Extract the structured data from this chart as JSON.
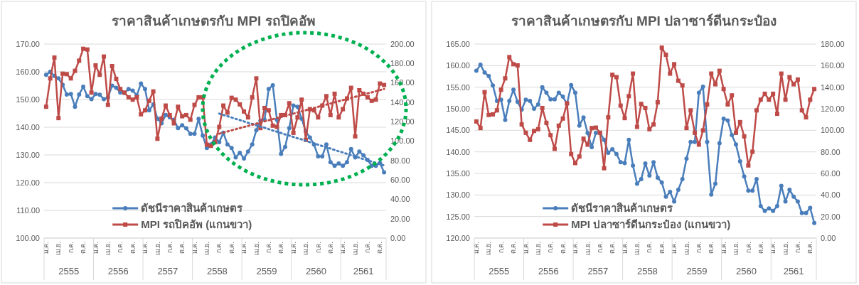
{
  "chart_data": [
    {
      "type": "line",
      "title": "ราคาสินค้าเกษตรกับ MPI รถปิคอัพ",
      "categories": [
        "ม.ค.",
        null,
        null,
        "เม.ย.",
        null,
        null,
        "ก.ค.",
        null,
        null,
        "ต.ค.",
        null,
        null,
        "ม.ค.",
        null,
        null,
        "เม.ย.",
        null,
        null,
        "ก.ค.",
        null,
        null,
        "ต.ค.",
        null,
        null,
        "ม.ค.",
        null,
        null,
        "เม.ย.",
        null,
        null,
        "ก.ค.",
        null,
        null,
        "ต.ค.",
        null,
        null,
        "ม.ค.",
        null,
        null,
        "เม.ย.",
        null,
        null,
        "ก.ค.",
        null,
        null,
        "ต.ค.",
        null,
        null,
        "ม.ค.",
        null,
        null,
        "เม.ย.",
        null,
        null,
        "ก.ค.",
        null,
        null,
        "ต.ค.",
        null,
        null,
        "ม.ค.",
        null,
        null,
        "เม.ย.",
        null,
        null,
        "ก.ค.",
        null,
        null,
        "ต.ค.",
        null,
        null,
        "ม.ค.",
        null,
        null,
        "เม.ย.",
        null,
        null,
        "ก.ค.",
        null,
        null,
        "ต.ค.",
        null
      ],
      "annotations": [
        "2555",
        "2556",
        "2557",
        "2558",
        "2559",
        "2560",
        "2561"
      ],
      "series": [
        {
          "name": "ดัชนีราคาสินค้าเกษตร",
          "color": "#4a7ebb",
          "marker": "circle",
          "values": [
            158.9,
            160,
            158.5,
            157.6,
            155.3,
            151.8,
            152,
            147.4,
            151.8,
            154.6,
            151.2,
            150.1,
            152,
            151.7,
            150.1,
            150.8,
            155,
            154.2,
            152.5,
            152.3,
            153.8,
            153.2,
            151.5,
            155.8,
            153.8,
            146.1,
            148.2,
            143.1,
            141.4,
            144.4,
            143.6,
            142.7,
            139.7,
            140.7,
            139.6,
            137.6,
            137.6,
            143,
            137,
            132.5,
            133.8,
            136.3,
            134.6,
            138,
            133.8,
            132.5,
            129.1,
            130.8,
            128.7,
            131.2,
            133.8,
            138.9,
            142.3,
            142.7,
            153.8,
            155.1,
            142.7,
            130.4,
            132.9,
            139.7,
            147.8,
            147.4,
            143.1,
            138.5,
            136.3,
            133.8,
            129.5,
            129.5,
            133.8,
            127.4,
            126.1,
            126.9,
            126.1,
            127.4,
            132.1,
            129.1,
            131.2,
            129.9,
            128.2,
            126.1,
            126.1,
            127.1,
            123.7
          ]
        },
        {
          "name": "MPI รถปิคอัพ (แกนขวา)",
          "color": "#be4b48",
          "marker": "square",
          "axis": "y2",
          "values": [
            135.4,
            164.6,
            186.1,
            123.7,
            169.5,
            169,
            164.6,
            172.4,
            182.9,
            195.1,
            194.4,
            150,
            178,
            168.3,
            187.1,
            137.3,
            177.3,
            164.1,
            153.7,
            150,
            145.1,
            142.7,
            145.1,
            127.6,
            131.7,
            141.5,
            151.2,
            102.4,
            123.2,
            136.6,
            126.8,
            118.3,
            135.4,
            125.6,
            126.8,
            122,
            137.3,
            145.1,
            145.1,
            96.3,
            95.1,
            98.8,
            114.6,
            136.6,
            129.3,
            144.6,
            142.7,
            137.8,
            130.5,
            124.4,
            145.1,
            164.6,
            113.4,
            134.1,
            131.7,
            115.9,
            114.6,
            126.8,
            126.8,
            139,
            108.5,
            124.4,
            142.7,
            101.2,
            132.9,
            131.7,
            124.4,
            136.6,
            146.3,
            126.8,
            148.8,
            124.4,
            132.9,
            143.9,
            154.9,
            104.9,
            152.4,
            148.8,
            145.1,
            141.5,
            142.7,
            159.3,
            157.8
          ]
        },
        {
          "color": "#4a7ebb",
          "marker": "none",
          "line_style": "dotted",
          "values": [
            null,
            null,
            null,
            null,
            null,
            null,
            null,
            null,
            null,
            null,
            null,
            null,
            null,
            null,
            null,
            null,
            null,
            null,
            null,
            null,
            null,
            null,
            null,
            null,
            null,
            null,
            null,
            null,
            null,
            null,
            null,
            null,
            null,
            null,
            null,
            null,
            null,
            null,
            null,
            null,
            null,
            null,
            144.9,
            144.4,
            144,
            143.5,
            143,
            142.6,
            142.1,
            141.6,
            141.2,
            140.7,
            140.2,
            139.8,
            139.3,
            138.8,
            138.4,
            137.9,
            137.4,
            137,
            136.5,
            136,
            135.6,
            135.1,
            134.6,
            134.2,
            133.7,
            133.2,
            132.8,
            132.3,
            131.8,
            131.3,
            130.9,
            130.4,
            129.9,
            129.5,
            129,
            128.5,
            128.1,
            127.6,
            127.1,
            126.7,
            126.2
          ]
        },
        {
          "color": "#be4b48",
          "marker": "none",
          "line_style": "dotted",
          "axis": "y2",
          "values": [
            null,
            null,
            null,
            null,
            null,
            null,
            null,
            null,
            null,
            null,
            null,
            null,
            null,
            null,
            null,
            null,
            null,
            null,
            null,
            null,
            null,
            null,
            null,
            null,
            null,
            null,
            null,
            null,
            null,
            null,
            null,
            null,
            null,
            null,
            null,
            null,
            null,
            null,
            null,
            null,
            null,
            null,
            107.6,
            108.8,
            109.9,
            111.1,
            112.2,
            113.4,
            114.5,
            115.7,
            116.8,
            118,
            119.1,
            120.3,
            121.4,
            122.6,
            123.7,
            124.9,
            126,
            127.2,
            128.3,
            129.5,
            130.7,
            131.8,
            133,
            134.1,
            135.3,
            136.4,
            137.6,
            138.7,
            139.9,
            141,
            142.2,
            143.3,
            144.5,
            145.6,
            146.8,
            147.9,
            149.1,
            150.2,
            151.4,
            152.5,
            153.7
          ]
        }
      ],
      "ylim": [
        100,
        170
      ],
      "yticks": [
        {
          "value": 100,
          "label": "100.00"
        },
        {
          "value": 110,
          "label": "110.00"
        },
        {
          "value": 120,
          "label": "120.00"
        },
        {
          "value": 130,
          "label": "130.00"
        },
        {
          "value": 140,
          "label": "140.00"
        },
        {
          "value": 150,
          "label": "150.00"
        },
        {
          "value": 160,
          "label": "160.00"
        },
        {
          "value": 170,
          "label": "170.00"
        }
      ],
      "y2lim": [
        0,
        200
      ],
      "y2ticks": [
        {
          "value": 0,
          "label": "0.00"
        },
        {
          "value": 20,
          "label": "20.00"
        },
        {
          "value": 40,
          "label": "40.00"
        },
        {
          "value": 60,
          "label": "60.00"
        },
        {
          "value": 80,
          "label": "80.00"
        },
        {
          "value": 100,
          "label": "100.00"
        },
        {
          "value": 120,
          "label": "120.00"
        },
        {
          "value": 140,
          "label": "140.00"
        },
        {
          "value": 160,
          "label": "160.00"
        },
        {
          "value": 180,
          "label": "180.00"
        },
        {
          "value": 200,
          "label": "200.00"
        }
      ],
      "grid": "y",
      "legend": "bottom"
    },
    {
      "type": "line",
      "title": "ราคาสินค้าเกษตรกับ MPI ปลาซาร์ดีนกระป๋อง",
      "categories": [
        "ม.ค.",
        null,
        null,
        "เม.ย.",
        null,
        null,
        "ก.ค.",
        null,
        null,
        "ต.ค.",
        null,
        null,
        "ม.ค.",
        null,
        null,
        "เม.ย.",
        null,
        null,
        "ก.ค.",
        null,
        null,
        "ต.ค.",
        null,
        null,
        "ม.ค.",
        null,
        null,
        "เม.ย.",
        null,
        null,
        "ก.ค.",
        null,
        null,
        "ต.ค.",
        null,
        null,
        "ม.ค.",
        null,
        null,
        "เม.ย.",
        null,
        null,
        "ก.ค.",
        null,
        null,
        "ต.ค.",
        null,
        null,
        "ม.ค.",
        null,
        null,
        "เม.ย.",
        null,
        null,
        "ก.ค.",
        null,
        null,
        "ต.ค.",
        null,
        null,
        "ม.ค.",
        null,
        null,
        "เม.ย.",
        null,
        null,
        "ก.ค.",
        null,
        null,
        "ต.ค.",
        null,
        null,
        "ม.ค.",
        null,
        null,
        "เม.ย.",
        null,
        null,
        "ก.ค.",
        null,
        null,
        "ต.ค.",
        null
      ],
      "annotations": [
        "2555",
        "2556",
        "2557",
        "2558",
        "2559",
        "2560",
        "2561"
      ],
      "series": [
        {
          "name": "ดัชนีราคาสินค้าเกษตร",
          "color": "#4a7ebb",
          "marker": "circle",
          "values": [
            158.8,
            160.2,
            158.4,
            157.6,
            155.4,
            151.8,
            152.1,
            147.4,
            151.8,
            154.4,
            151.6,
            149.8,
            152.1,
            151.8,
            150,
            151,
            155,
            153.7,
            152.2,
            152.2,
            153.7,
            152.8,
            151.1,
            155.5,
            153.7,
            146.1,
            148,
            144.4,
            141.1,
            144.4,
            144.4,
            142.8,
            139.8,
            140.6,
            139.5,
            137.6,
            137.4,
            142.8,
            136.8,
            132.6,
            133.7,
            137.3,
            134.5,
            137.6,
            134,
            132.9,
            129.6,
            130.7,
            128.5,
            131.2,
            133.7,
            138.4,
            142.3,
            142.3,
            153.7,
            155.1,
            142.3,
            130.1,
            132.6,
            142,
            147.7,
            147.3,
            143.9,
            141.7,
            137.8,
            134.3,
            131,
            131,
            133.7,
            127.4,
            126.3,
            126.9,
            126.3,
            127.4,
            132.1,
            128.5,
            131.2,
            129.6,
            128.5,
            125.8,
            125.8,
            127,
            123.5
          ]
        },
        {
          "name": "MPI ปลาซาร์ดีนกระป๋อง (แกนขวา)",
          "color": "#be4b48",
          "marker": "square",
          "axis": "y2",
          "values": [
            108.2,
            102.1,
            135.4,
            114.2,
            114.8,
            118.5,
            137.6,
            148.2,
            167.9,
            161.3,
            160.2,
            105.4,
            97.7,
            91.1,
            99.4,
            101,
            120.7,
            106.9,
            95.5,
            82.8,
            104.3,
            110.9,
            125.1,
            77.9,
            69.6,
            75.7,
            92.2,
            86.7,
            102.1,
            102.5,
            97.7,
            64.8,
            112,
            151.5,
            149.3,
            122.9,
            111.3,
            131.7,
            152.6,
            103.2,
            124.5,
            120.7,
            101,
            105.4,
            126,
            176.7,
            170.1,
            152.6,
            161.3,
            146,
            141.6,
            102.1,
            118.5,
            97.7,
            86.7,
            99.9,
            124,
            152.6,
            142.7,
            155.2,
            138.3,
            124,
            132.4,
            97.7,
            107.6,
            94.4,
            67.4,
            80.1,
            118.5,
            128.4,
            133.9,
            128.4,
            133.9,
            115.3,
            152.6,
            128.4,
            149.3,
            142.7,
            147.1,
            118.5,
            112,
            128.4,
            138.3
          ]
        }
      ],
      "ylim": [
        120,
        165
      ],
      "yticks": [
        {
          "value": 120,
          "label": "120.00"
        },
        {
          "value": 125,
          "label": "125.00"
        },
        {
          "value": 130,
          "label": "130.00"
        },
        {
          "value": 135,
          "label": "135.00"
        },
        {
          "value": 140,
          "label": "140.00"
        },
        {
          "value": 145,
          "label": "145.00"
        },
        {
          "value": 150,
          "label": "150.00"
        },
        {
          "value": 155,
          "label": "155.00"
        },
        {
          "value": 160,
          "label": "160.00"
        },
        {
          "value": 165,
          "label": "165.00"
        }
      ],
      "y2lim": [
        0,
        180
      ],
      "y2ticks": [
        {
          "value": 0,
          "label": "0.00"
        },
        {
          "value": 20,
          "label": "20.00"
        },
        {
          "value": 40,
          "label": "40.00"
        },
        {
          "value": 60,
          "label": "60.00"
        },
        {
          "value": 80,
          "label": "80.00"
        },
        {
          "value": 100,
          "label": "100.00"
        },
        {
          "value": 120,
          "label": "120.00"
        },
        {
          "value": 140,
          "label": "140.00"
        },
        {
          "value": 160,
          "label": "160.00"
        },
        {
          "value": 180,
          "label": "180.00"
        }
      ],
      "grid": "y",
      "legend": "bottom"
    }
  ]
}
